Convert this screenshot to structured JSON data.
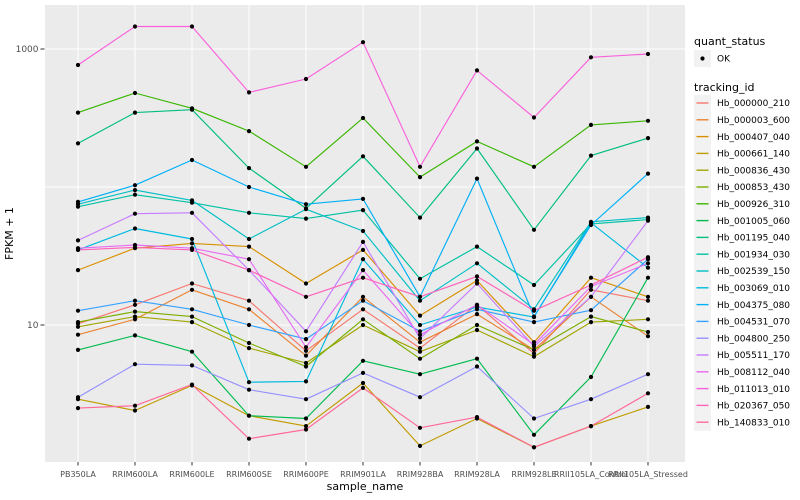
{
  "figure": {
    "background_color": "#FFFFFF",
    "panel_background_color": "#EBEBEB",
    "grid_color": "#FFFFFF",
    "legend_key_color": "#F2F2F2",
    "axis_text_color": "#4D4D4D",
    "point_color": "#000000"
  },
  "chart_data": {
    "type": "line",
    "title": "",
    "xlabel": "sample_name",
    "ylabel": "FPKM + 1",
    "y_scale": "log10",
    "ylim": [
      1,
      2000
    ],
    "y_axis_ticks": [
      {
        "value": 1000,
        "label": "1000"
      },
      {
        "value": 10,
        "label": "10"
      }
    ],
    "y_gridlines": [
      1,
      10,
      100,
      1000
    ],
    "grid": true,
    "point_shape": "filled-circle",
    "categories": [
      "PB350LA",
      "RRIM600LA",
      "RRIM600LE",
      "RRIM600SE",
      "RRIM600PE",
      "RRIM901LA",
      "RRIM928BA",
      "RRIM928LA",
      "RRIM928LE",
      "RRII105LA_Control",
      "RRII105LA_Stressed"
    ],
    "series": [
      {
        "name": "Hb_000000_210",
        "color": "#F8766D",
        "values": [
          10.2,
          14,
          20,
          15,
          6.5,
          13,
          6.8,
          14,
          6.2,
          18,
          15
        ]
      },
      {
        "name": "Hb_000003_600",
        "color": "#EA8331",
        "values": [
          8.5,
          11,
          18,
          13,
          6,
          16,
          7.5,
          12,
          6.6,
          16,
          8.3
        ]
      },
      {
        "name": "Hb_000407_040",
        "color": "#D89000",
        "values": [
          25,
          36,
          39,
          37,
          20,
          35,
          11.7,
          21,
          7.5,
          22,
          16
        ]
      },
      {
        "name": "Hb_000661_140",
        "color": "#C09B00",
        "values": [
          2.9,
          2.4,
          3.65,
          2.2,
          1.85,
          3.8,
          1.33,
          2.1,
          1.3,
          1.85,
          2.55
        ]
      },
      {
        "name": "Hb_000836_430",
        "color": "#A3A500",
        "values": [
          9.7,
          11.5,
          10.5,
          6.8,
          5.3,
          10,
          6.4,
          9.2,
          5.9,
          10.5,
          11
        ]
      },
      {
        "name": "Hb_000853_430",
        "color": "#7CAE00",
        "values": [
          10.5,
          12.5,
          11.5,
          7.4,
          5,
          11,
          5.7,
          10,
          6.6,
          11.5,
          8.9
        ]
      },
      {
        "name": "Hb_000926_310",
        "color": "#39B600",
        "values": [
          346,
          480,
          372,
          254,
          140,
          316,
          118,
          214,
          140,
          282,
          302
        ]
      },
      {
        "name": "Hb_001005_060",
        "color": "#00BB4E",
        "values": [
          6.6,
          8.4,
          6.4,
          2.2,
          2.1,
          5.5,
          4.4,
          5.7,
          1.6,
          4.2,
          22
        ]
      },
      {
        "name": "Hb_001195_040",
        "color": "#00BF7D",
        "values": [
          207,
          346,
          363,
          137,
          70,
          167,
          60,
          190,
          49,
          169,
          226
        ]
      },
      {
        "name": "Hb_001934_030",
        "color": "#00C1A3",
        "values": [
          72,
          88,
          77,
          65,
          59,
          68,
          21.6,
          37,
          19.5,
          54,
          58
        ]
      },
      {
        "name": "Hb_002539_150",
        "color": "#00BFC4",
        "values": [
          75,
          95,
          80,
          42,
          69,
          48,
          15,
          28,
          13,
          56,
          60
        ]
      },
      {
        "name": "Hb_003069_010",
        "color": "#00BAE0",
        "values": [
          35,
          50,
          42,
          3.85,
          3.9,
          30,
          10,
          13.5,
          11.4,
          55,
          26
        ]
      },
      {
        "name": "Hb_004375_080",
        "color": "#00B0F6",
        "values": [
          78,
          103,
          157,
          100,
          75,
          82,
          16,
          115,
          11.5,
          53,
          125
        ]
      },
      {
        "name": "Hb_004531_070",
        "color": "#35A2FF",
        "values": [
          12.7,
          15,
          13,
          10,
          7.9,
          15,
          9,
          13,
          10.5,
          12.8,
          30
        ]
      },
      {
        "name": "Hb_004800_250",
        "color": "#9590FF",
        "values": [
          3,
          5.2,
          5.1,
          3.4,
          2.9,
          4.5,
          3,
          5,
          2.1,
          2.9,
          4.4
        ]
      },
      {
        "name": "Hb_005511_170",
        "color": "#C77CFF",
        "values": [
          41,
          64,
          65,
          25,
          9,
          40,
          8,
          20,
          7,
          16,
          57
        ]
      },
      {
        "name": "Hb_008112_040",
        "color": "#E76BF3",
        "values": [
          36,
          38,
          36,
          30,
          6.9,
          25,
          8.5,
          14,
          7.2,
          19,
          28
        ]
      },
      {
        "name": "Hb_011013_010",
        "color": "#FA62DB",
        "values": [
          766,
          1455,
          1455,
          485,
          606,
          1120,
          140,
          700,
          319,
          870,
          920
        ]
      },
      {
        "name": "Hb_020367_050",
        "color": "#FF62BC",
        "values": [
          35,
          36.5,
          35,
          25,
          16,
          22,
          16,
          22.5,
          12.7,
          19.5,
          31
        ]
      },
      {
        "name": "Hb_140833_010",
        "color": "#FF6A98",
        "values": [
          2.5,
          2.6,
          3.7,
          1.5,
          1.75,
          3.5,
          1.8,
          2.15,
          1.3,
          1.85,
          3.2
        ]
      }
    ],
    "legend": {
      "position": "right",
      "quant_status_title": "quant_status",
      "quant_status_items": [
        {
          "label": "OK",
          "symbol": "point"
        }
      ],
      "tracking_title": "tracking_id"
    }
  }
}
